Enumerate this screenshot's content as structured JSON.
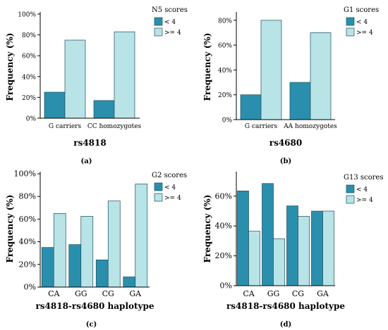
{
  "chart_data": [
    {
      "type": "bar",
      "panel_label": "(a)",
      "legend_title": "N5 scores",
      "legend_placement": "top-right",
      "categories": [
        "G carriers",
        "CC homozygotes"
      ],
      "series": [
        {
          "name": "< 4",
          "values": [
            25,
            17
          ]
        },
        {
          "name": ">= 4",
          "values": [
            75,
            83
          ]
        }
      ],
      "xlabel": "rs4818",
      "ylabel": "Frequency (%)",
      "ylim": [
        0,
        100
      ],
      "yticks": [
        0,
        20,
        40,
        60,
        80,
        100
      ],
      "ytick_labels": [
        "0%",
        "20%",
        "40%",
        "60%",
        "80%",
        "100%"
      ],
      "grid": false
    },
    {
      "type": "bar",
      "panel_label": "(b)",
      "legend_title": "G1 scores",
      "legend_placement": "top-right",
      "categories": [
        "G carriers",
        "AA homozygotes"
      ],
      "series": [
        {
          "name": "< 4",
          "values": [
            20,
            30
          ]
        },
        {
          "name": ">= 4",
          "values": [
            80,
            70
          ]
        }
      ],
      "xlabel": "rs4680",
      "ylabel": "Frequency (%)",
      "ylim": [
        0,
        85
      ],
      "yticks": [
        0,
        20,
        40,
        60,
        80
      ],
      "ytick_labels": [
        "0%",
        "20%",
        "40%",
        "60%",
        "80%"
      ],
      "grid": false
    },
    {
      "type": "bar",
      "panel_label": "(c)",
      "legend_title": "G2 scores",
      "legend_placement": "top-right",
      "categories": [
        "CA",
        "GG",
        "CG",
        "GA"
      ],
      "series": [
        {
          "name": "< 4",
          "values": [
            35,
            37.5,
            24,
            9
          ]
        },
        {
          "name": ">= 4",
          "values": [
            65,
            62.5,
            76,
            91
          ]
        }
      ],
      "xlabel": "rs4818-rs4680 haplotype",
      "ylabel": "Frequency (%)",
      "ylim": [
        0,
        100
      ],
      "yticks": [
        0,
        20,
        40,
        60,
        80,
        100
      ],
      "ytick_labels": [
        "0%",
        "20%",
        "40%",
        "60%",
        "80%",
        "100%"
      ],
      "grid": false
    },
    {
      "type": "bar",
      "panel_label": "(d)",
      "legend_title": "G13 scores",
      "legend_placement": "top-right",
      "categories": [
        "CA",
        "GG",
        "CG",
        "GA"
      ],
      "series": [
        {
          "name": "< 4",
          "values": [
            63.5,
            68.5,
            53.5,
            50
          ]
        },
        {
          "name": ">= 4",
          "values": [
            36.5,
            31.5,
            46.5,
            50
          ]
        }
      ],
      "xlabel": "rs4818-rs4680 haplotype",
      "ylabel": "Frequency (%)",
      "ylim": [
        0,
        75
      ],
      "yticks": [
        0,
        20,
        40,
        60
      ],
      "ytick_labels": [
        "0%",
        "20%",
        "40%",
        "60%"
      ],
      "grid": false
    }
  ],
  "colors": {
    "low": "#2a8fad",
    "high": "#b8e3e7",
    "stroke": "#1d4f5e",
    "axis": "#000000"
  }
}
